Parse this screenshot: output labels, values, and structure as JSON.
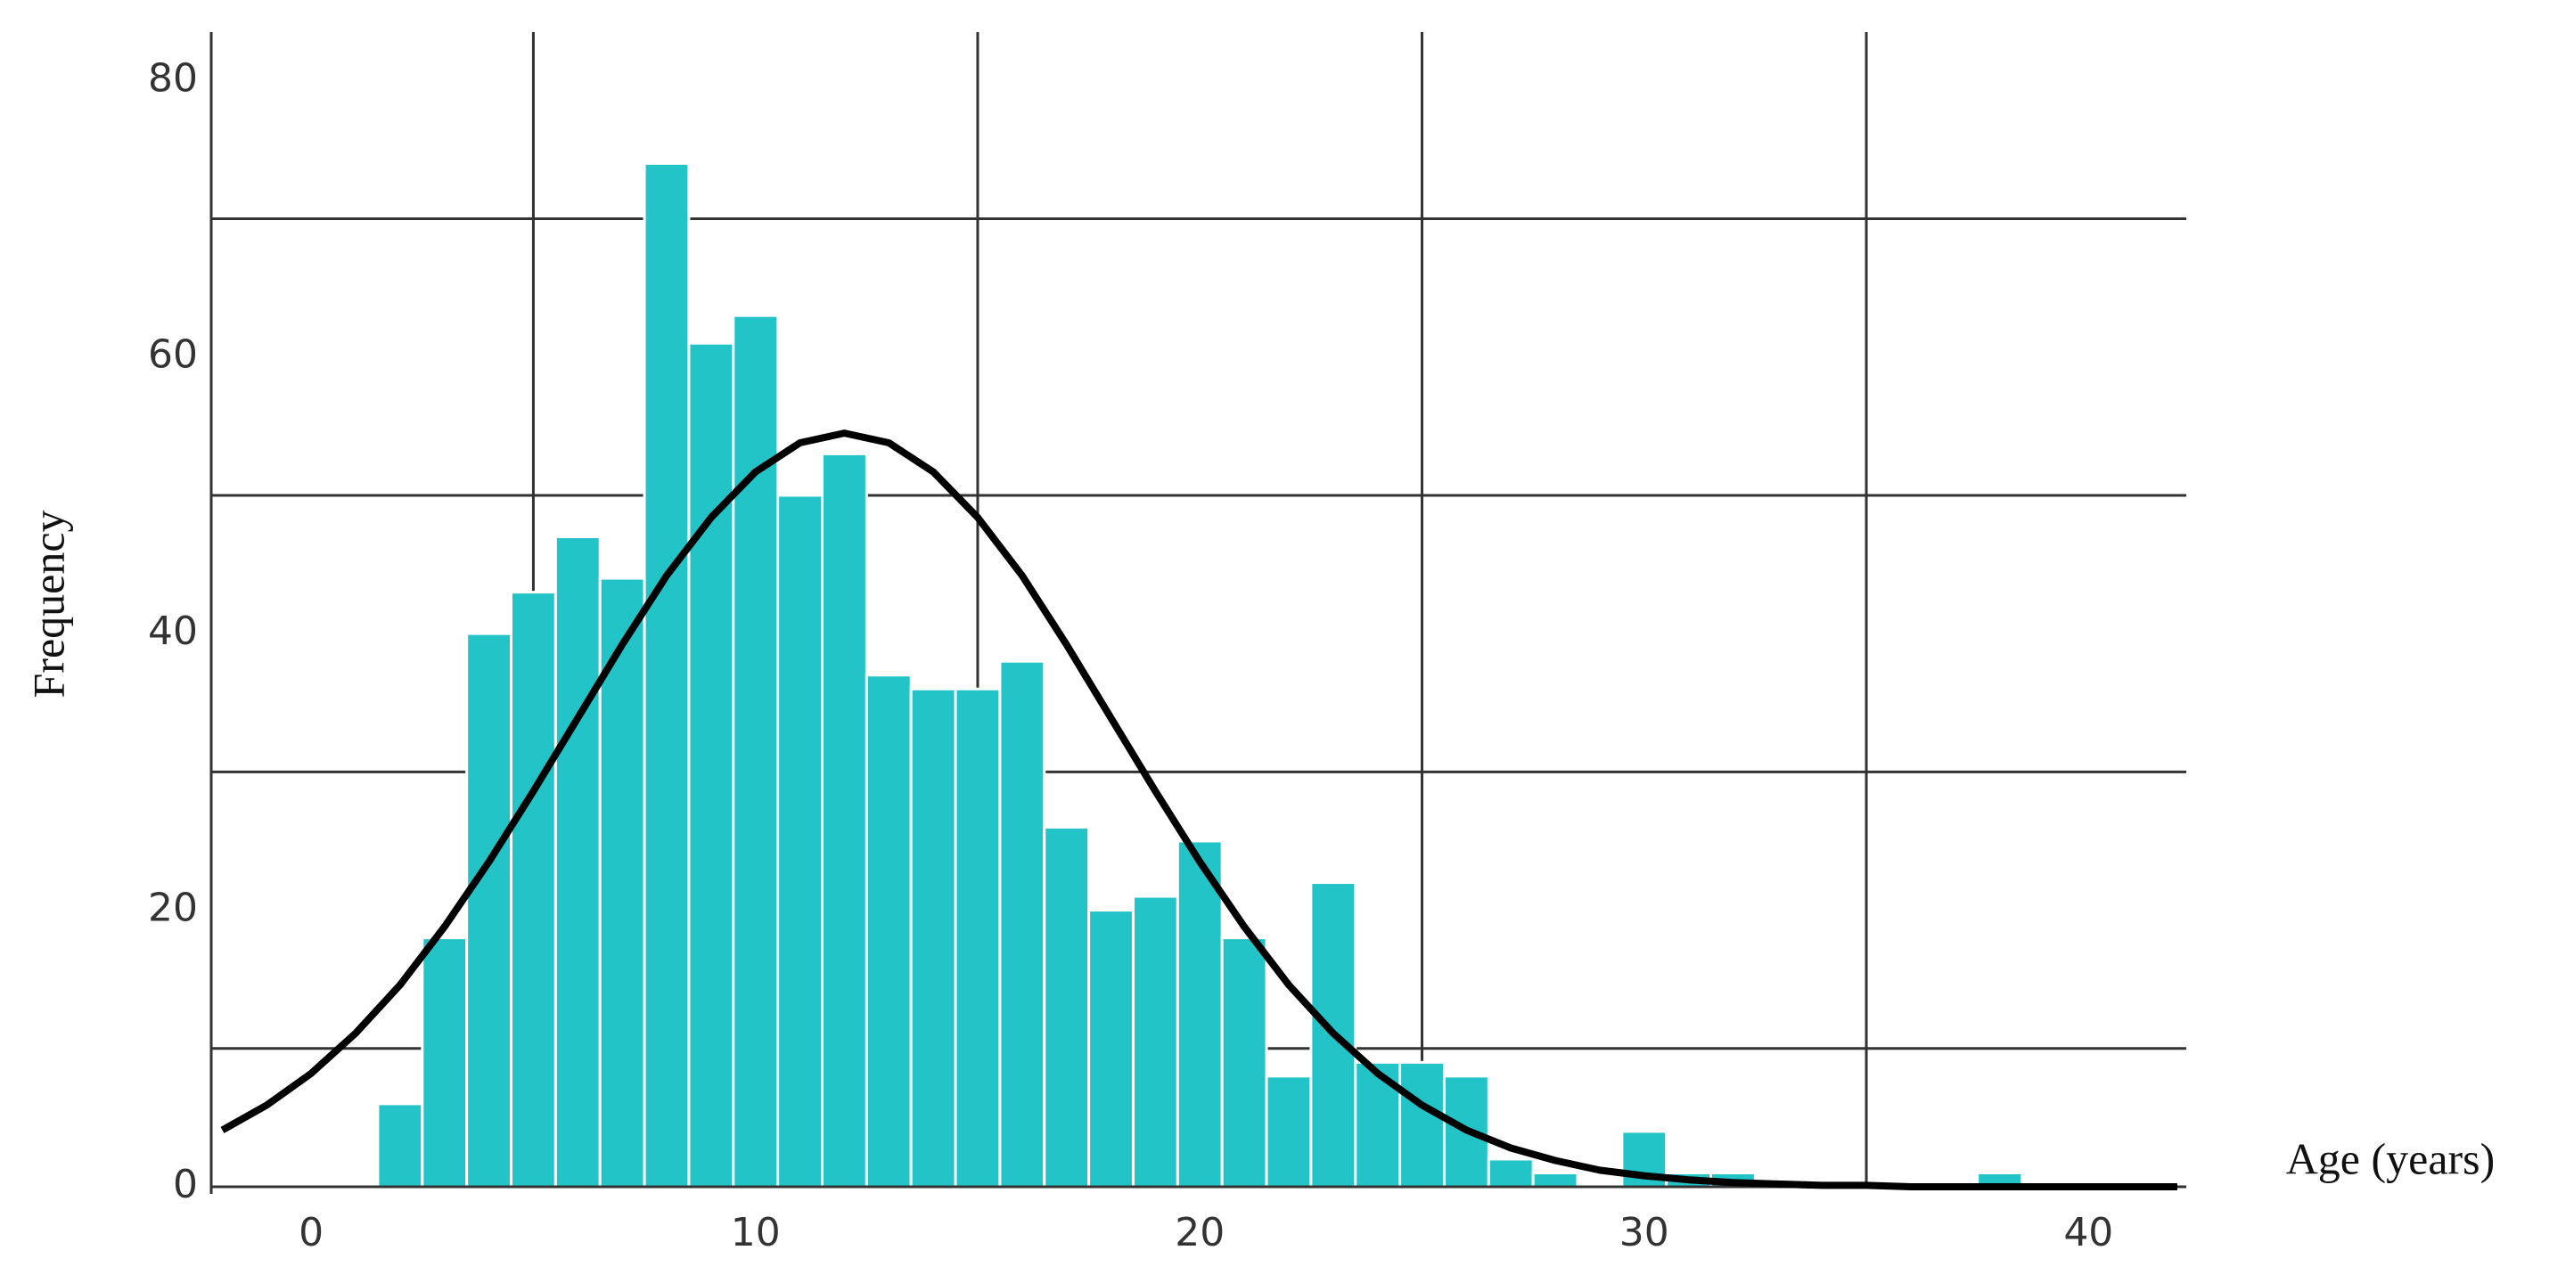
{
  "chart_data": {
    "type": "histogram",
    "xlabel": "Age (years)",
    "ylabel": "Frequency",
    "bins": [
      1.5,
      2.5,
      3.5,
      4.5,
      5.5,
      6.5,
      7.5,
      8.5,
      9.5,
      10.5,
      11.5,
      12.5,
      13.5,
      14.5,
      15.5,
      16.5,
      17.5,
      18.5,
      19.5,
      20.5,
      21.5,
      22.5,
      23.5,
      24.5,
      25.5,
      26.5,
      27.5,
      28.5,
      29.5,
      30.5,
      31.5,
      32.5,
      33.5,
      34.5,
      35.5,
      36.5,
      37.5,
      38.5
    ],
    "counts": [
      6,
      18,
      40,
      43,
      47,
      44,
      74,
      61,
      63,
      50,
      53,
      37,
      36,
      36,
      38,
      26,
      20,
      21,
      25,
      18,
      8,
      22,
      9,
      9,
      8,
      2,
      1,
      0,
      4,
      1,
      1,
      0,
      0,
      0,
      0,
      0,
      1
    ],
    "color": "#22c4c8",
    "curve": {
      "color": "#000000",
      "x": [
        -2,
        -1,
        0,
        1,
        2,
        3,
        4,
        5,
        6,
        7,
        8,
        9,
        10,
        11,
        12,
        13,
        14,
        15,
        16,
        17,
        18,
        19,
        20,
        21,
        22,
        23,
        24,
        25,
        26,
        27,
        28,
        29,
        30,
        31,
        32,
        33,
        34,
        35,
        36,
        37,
        38,
        39,
        40,
        41,
        42
      ],
      "y": [
        4.1,
        5.9,
        8.2,
        11.1,
        14.6,
        18.8,
        23.5,
        28.6,
        33.9,
        39.2,
        44.2,
        48.4,
        51.7,
        53.8,
        54.5,
        53.8,
        51.7,
        48.4,
        44.2,
        39.2,
        33.9,
        28.6,
        23.5,
        18.8,
        14.6,
        11.1,
        8.2,
        5.9,
        4.1,
        2.8,
        1.9,
        1.2,
        0.8,
        0.5,
        0.3,
        0.2,
        0.1,
        0.1,
        0,
        0,
        0,
        0,
        0,
        0,
        0
      ]
    },
    "xlim": [
      -2.25,
      42.2
    ],
    "ylim": [
      0,
      83.5
    ],
    "xticks": [
      0,
      10,
      20,
      30,
      40
    ],
    "yticks": [
      0,
      20,
      40,
      60,
      80
    ],
    "xgrid": [
      5,
      15,
      25,
      35
    ],
    "ygrid": [
      10,
      30,
      50,
      70
    ],
    "grid": true
  }
}
